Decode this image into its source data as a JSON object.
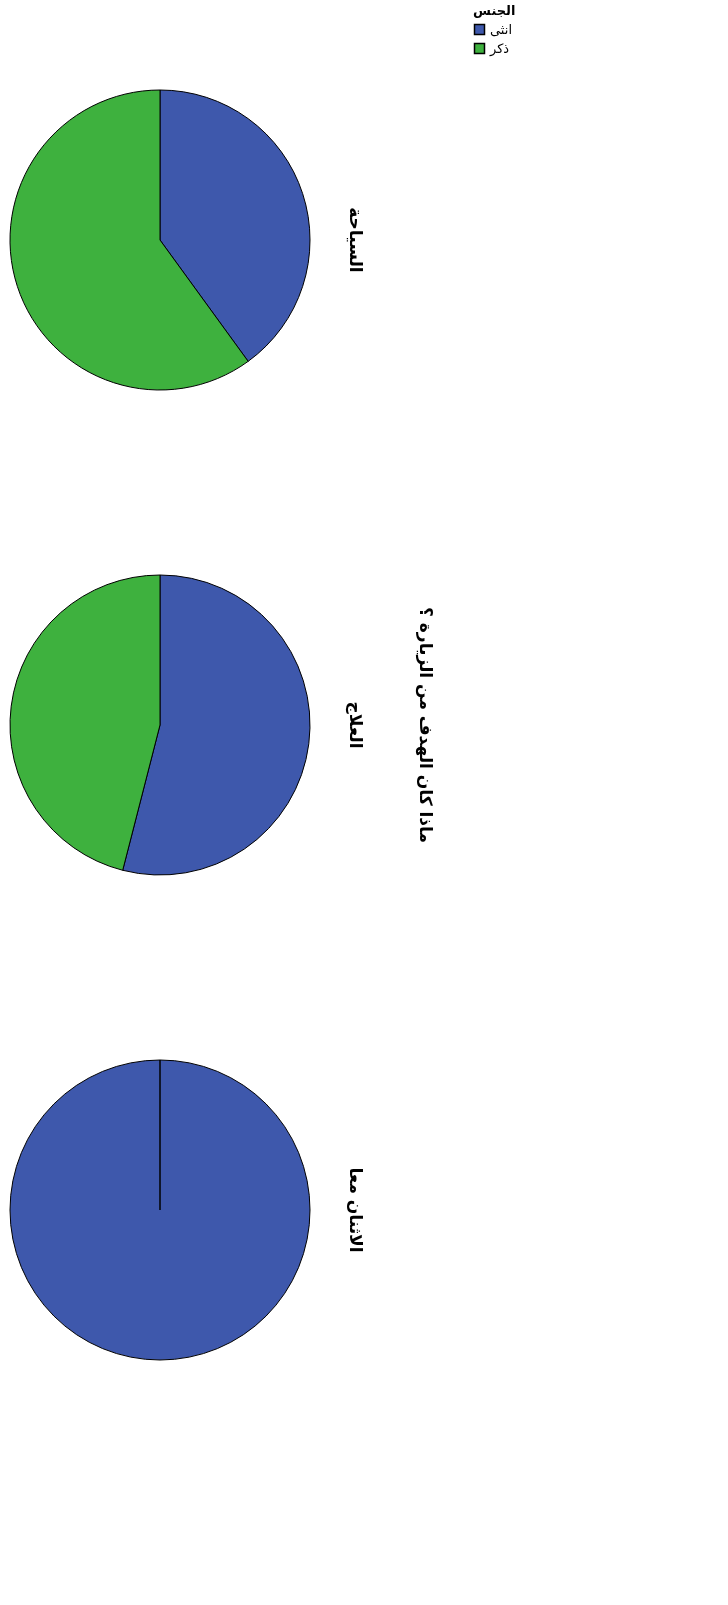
{
  "chart_data": {
    "type": "pie",
    "xlabel": "ماذا كان الهدف من الزيارة ؟",
    "legend_title": "الجنس",
    "legend": "top right",
    "categories": [
      "انثى",
      "ذكر"
    ],
    "colors": [
      "#3e58ac",
      "#3eb13e"
    ],
    "series": [
      {
        "name": "السياحة",
        "values": [
          40,
          60
        ]
      },
      {
        "name": "العلاج",
        "values": [
          54,
          46
        ]
      },
      {
        "name": "الاثنان معا",
        "values": [
          100,
          0
        ]
      }
    ]
  }
}
